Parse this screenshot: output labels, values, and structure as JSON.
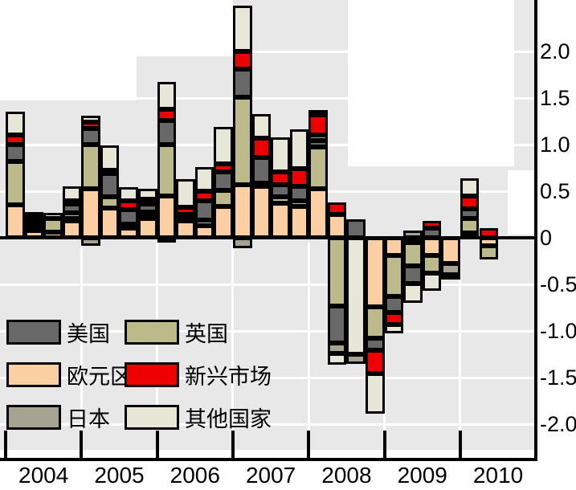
{
  "chart_data": {
    "type": "bar",
    "stacked": true,
    "title": "",
    "xlabel": "",
    "ylabel": "",
    "grid": true,
    "legend_position": "bottom-left-inside",
    "x_years": [
      "2004",
      "2005",
      "2006",
      "2007",
      "2008",
      "2009",
      "2010"
    ],
    "y_tick_labels": [
      "2.0",
      "1.5",
      "1.0",
      "0.5",
      "0",
      "-0.5",
      "-1.0",
      "-1.5",
      "-2.0"
    ],
    "y_tick_values": [
      2.0,
      1.5,
      1.0,
      0.5,
      0,
      -0.5,
      -1.0,
      -1.5,
      -2.0
    ],
    "ylim": [
      -2.2,
      2.55
    ],
    "colors": {
      "background_plot": "#e8e8e8",
      "gridline": "#ffffff",
      "axis": "#000000",
      "bar_border": "#000000"
    },
    "legend": [
      {
        "series": "us",
        "label": "美国",
        "color": "#686868"
      },
      {
        "series": "uk",
        "label": "英国",
        "color": "#bcb98a"
      },
      {
        "series": "euro",
        "label": "欧元区",
        "color": "#fbcfa2"
      },
      {
        "series": "em",
        "label": "新兴市场",
        "color": "#ee0000"
      },
      {
        "series": "japan",
        "label": "日本",
        "color": "#a6a391"
      },
      {
        "series": "other",
        "label": "其他国家",
        "color": "#e7e7d8"
      }
    ],
    "series_colors": {
      "us": "#686868",
      "uk": "#bcb98a",
      "euro": "#fbcfa2",
      "em": "#ee0000",
      "japan": "#a6a391",
      "other": "#e7e7d8"
    },
    "bars": [
      {
        "quarter": "2004Q1",
        "pos": [
          [
            "euro",
            0.35
          ],
          [
            "uk",
            0.47
          ],
          [
            "us",
            0.18
          ],
          [
            "em",
            0.1
          ],
          [
            "other",
            0.25
          ]
        ],
        "neg": []
      },
      {
        "quarter": "2004Q2",
        "pos": [
          [
            "euro",
            0.08
          ],
          [
            "japan",
            0.02
          ],
          [
            "uk",
            0.04
          ],
          [
            "us",
            0.05
          ],
          [
            "em",
            0.04
          ],
          [
            "other",
            0.05
          ]
        ],
        "neg": []
      },
      {
        "quarter": "2004Q3",
        "pos": [
          [
            "euro",
            0.06
          ],
          [
            "uk",
            0.15
          ],
          [
            "other",
            0.06
          ]
        ],
        "neg": []
      },
      {
        "quarter": "2004Q4",
        "pos": [
          [
            "euro",
            0.19
          ],
          [
            "japan",
            0.02
          ],
          [
            "uk",
            0.06
          ],
          [
            "us",
            0.09
          ],
          [
            "em",
            0.04
          ],
          [
            "other",
            0.15
          ]
        ],
        "neg": []
      },
      {
        "quarter": "2005Q1",
        "pos": [
          [
            "euro",
            0.53
          ],
          [
            "uk",
            0.47
          ],
          [
            "us",
            0.17
          ],
          [
            "em",
            0.07
          ],
          [
            "other",
            0.07
          ]
        ],
        "neg": [
          [
            "japan",
            -0.09
          ]
        ]
      },
      {
        "quarter": "2005Q2",
        "pos": [
          [
            "euro",
            0.32
          ],
          [
            "uk",
            0.12
          ],
          [
            "us",
            0.25
          ],
          [
            "em",
            0.03
          ],
          [
            "other",
            0.27
          ]
        ],
        "neg": []
      },
      {
        "quarter": "2005Q3",
        "pos": [
          [
            "euro",
            0.1
          ],
          [
            "uk",
            0.05
          ],
          [
            "us",
            0.15
          ],
          [
            "em",
            0.1
          ],
          [
            "other",
            0.14
          ]
        ],
        "neg": []
      },
      {
        "quarter": "2005Q4",
        "pos": [
          [
            "euro",
            0.21
          ],
          [
            "japan",
            0.02
          ],
          [
            "uk",
            0.05
          ],
          [
            "us",
            0.08
          ],
          [
            "em",
            0.05
          ],
          [
            "other",
            0.12
          ]
        ],
        "neg": []
      },
      {
        "quarter": "2006Q1",
        "pos": [
          [
            "euro",
            0.45
          ],
          [
            "uk",
            0.55
          ],
          [
            "us",
            0.26
          ],
          [
            "em",
            0.12
          ],
          [
            "other",
            0.29
          ]
        ],
        "neg": [
          [
            "japan",
            -0.05
          ]
        ]
      },
      {
        "quarter": "2006Q2",
        "pos": [
          [
            "euro",
            0.18
          ],
          [
            "uk",
            0.03
          ],
          [
            "us",
            0.04
          ],
          [
            "em",
            0.08
          ],
          [
            "other",
            0.3
          ]
        ],
        "neg": []
      },
      {
        "quarter": "2006Q3",
        "pos": [
          [
            "euro",
            0.13
          ],
          [
            "uk",
            0.06
          ],
          [
            "us",
            0.21
          ],
          [
            "em",
            0.1
          ],
          [
            "other",
            0.26
          ]
        ],
        "neg": []
      },
      {
        "quarter": "2006Q4",
        "pos": [
          [
            "euro",
            0.34
          ],
          [
            "uk",
            0.17
          ],
          [
            "us",
            0.2
          ],
          [
            "em",
            0.08
          ],
          [
            "other",
            0.4
          ]
        ],
        "neg": []
      },
      {
        "quarter": "2007Q1",
        "pos": [
          [
            "euro",
            0.57
          ],
          [
            "uk",
            0.94
          ],
          [
            "us",
            0.3
          ],
          [
            "em",
            0.19
          ],
          [
            "other",
            0.49
          ]
        ],
        "neg": [
          [
            "japan",
            -0.11
          ]
        ]
      },
      {
        "quarter": "2007Q2",
        "pos": [
          [
            "euro",
            0.55
          ],
          [
            "uk",
            0.04
          ],
          [
            "us",
            0.27
          ],
          [
            "em",
            0.21
          ],
          [
            "other",
            0.26
          ]
        ],
        "neg": []
      },
      {
        "quarter": "2007Q3",
        "pos": [
          [
            "euro",
            0.37
          ],
          [
            "uk",
            0.07
          ],
          [
            "us",
            0.13
          ],
          [
            "em",
            0.14
          ],
          [
            "other",
            0.37
          ]
        ],
        "neg": []
      },
      {
        "quarter": "2007Q4",
        "pos": [
          [
            "euro",
            0.34
          ],
          [
            "uk",
            0.06
          ],
          [
            "us",
            0.15
          ],
          [
            "em",
            0.19
          ],
          [
            "other",
            0.42
          ]
        ],
        "neg": []
      },
      {
        "quarter": "2008Q1",
        "pos": [
          [
            "euro",
            0.53
          ],
          [
            "uk",
            0.44
          ],
          [
            "us",
            0.07
          ],
          [
            "japan",
            0.06
          ],
          [
            "em",
            0.22
          ],
          [
            "other",
            0.05
          ]
        ],
        "neg": []
      },
      {
        "quarter": "2008Q2",
        "pos": [
          [
            "euro",
            0.25
          ],
          [
            "em",
            0.13
          ]
        ],
        "neg": [
          [
            "uk",
            -0.73
          ],
          [
            "us",
            -0.4
          ],
          [
            "japan",
            -0.11
          ],
          [
            "other",
            -0.12
          ]
        ]
      },
      {
        "quarter": "2008Q3",
        "pos": [
          [
            "us",
            0.2
          ]
        ],
        "neg": [
          [
            "other",
            -1.25
          ],
          [
            "japan",
            -0.1
          ]
        ]
      },
      {
        "quarter": "2008Q4",
        "pos": [],
        "neg": [
          [
            "euro",
            -0.74
          ],
          [
            "uk",
            -0.34
          ],
          [
            "us",
            -0.13
          ],
          [
            "em",
            -0.25
          ],
          [
            "other",
            -0.43
          ]
        ]
      },
      {
        "quarter": "2009Q1",
        "pos": [],
        "neg": [
          [
            "euro",
            -0.19
          ],
          [
            "uk",
            -0.44
          ],
          [
            "us",
            -0.17
          ],
          [
            "em",
            -0.13
          ],
          [
            "other",
            -0.1
          ]
        ]
      },
      {
        "quarter": "2009Q2",
        "pos": [
          [
            "japan",
            0.08
          ]
        ],
        "neg": [
          [
            "euro",
            -0.05
          ],
          [
            "uk",
            -0.25
          ],
          [
            "us",
            -0.19
          ],
          [
            "other",
            -0.21
          ]
        ]
      },
      {
        "quarter": "2009Q3",
        "pos": [
          [
            "us",
            0.1
          ],
          [
            "em",
            0.08
          ]
        ],
        "neg": [
          [
            "euro",
            -0.19
          ],
          [
            "uk",
            -0.19
          ],
          [
            "other",
            -0.19
          ]
        ]
      },
      {
        "quarter": "2009Q4",
        "pos": [],
        "neg": [
          [
            "euro",
            -0.28
          ],
          [
            "japan",
            -0.12
          ],
          [
            "us",
            -0.05
          ]
        ]
      },
      {
        "quarter": "2010Q1",
        "pos": [
          [
            "euro",
            0.05
          ],
          [
            "uk",
            0.16
          ],
          [
            "us",
            0.1
          ],
          [
            "em",
            0.14
          ],
          [
            "other",
            0.19
          ]
        ],
        "neg": []
      },
      {
        "quarter": "2010Q2",
        "pos": [
          [
            "em",
            0.1
          ]
        ],
        "neg": [
          [
            "euro",
            -0.09
          ],
          [
            "uk",
            -0.14
          ]
        ]
      }
    ]
  }
}
